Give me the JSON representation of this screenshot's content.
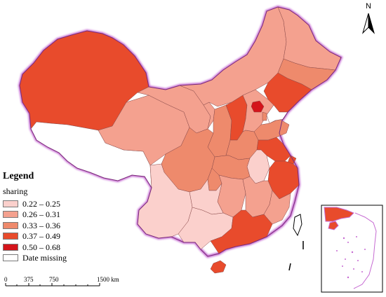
{
  "map": {
    "title": "",
    "north_label": "N",
    "legend": {
      "title": "Legend",
      "subtitle": "sharing",
      "classes": [
        {
          "label": "0.22 – 0.25",
          "color": "#fbd0cc"
        },
        {
          "label": "0.26 – 0.31",
          "color": "#f4a18f"
        },
        {
          "label": "0.33 – 0.36",
          "color": "#ee8a6c"
        },
        {
          "label": "0.37 – 0.49",
          "color": "#e84b2c"
        },
        {
          "label": "0.50 – 0.68",
          "color": "#d4141b"
        },
        {
          "label": "Date missing",
          "color": "#ffffff"
        }
      ]
    },
    "scale_bar": {
      "ticks": [
        "0",
        "375",
        "750",
        "1500 km"
      ]
    },
    "colors": {
      "border_glow": "#c66ad2",
      "province_line": "#7a3e3e",
      "inset_frame": "#000000"
    }
  }
}
